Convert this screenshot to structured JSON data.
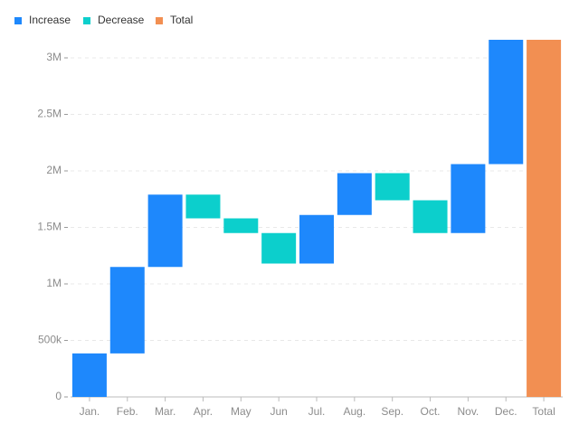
{
  "chart_data": {
    "type": "waterfall",
    "legend": [
      {
        "name": "Increase",
        "color": "#1e88fc"
      },
      {
        "name": "Decrease",
        "color": "#0ccfcc"
      },
      {
        "name": "Total",
        "color": "#f28f52"
      }
    ],
    "categories": [
      "Jan.",
      "Feb.",
      "Mar.",
      "Apr.",
      "May",
      "Jun",
      "Jul.",
      "Aug.",
      "Sep.",
      "Oct.",
      "Nov.",
      "Dec.",
      "Total"
    ],
    "values": [
      385000,
      765000,
      640000,
      -210000,
      -130000,
      -270000,
      430000,
      370000,
      -240000,
      -290000,
      610000,
      1100000,
      3160000
    ],
    "ylim": [
      0,
      3160000
    ],
    "yticks": [
      0,
      {
        "value": 500000,
        "label": "500k"
      },
      {
        "value": 1000000,
        "label": "1M"
      },
      {
        "value": 1500000,
        "label": "1.5M"
      },
      {
        "value": 2000000,
        "label": "2M"
      },
      {
        "value": 2500000,
        "label": "2.5M"
      },
      {
        "value": 3000000,
        "label": "3M"
      }
    ],
    "grid": true
  }
}
